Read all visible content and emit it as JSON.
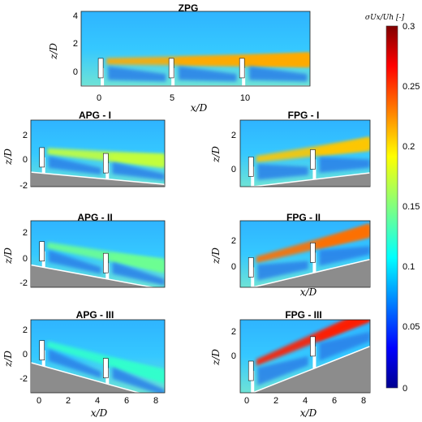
{
  "chart_data": [
    {
      "type": "heatmap",
      "title": "ZPG",
      "xlabel": "x/D",
      "ylabel": "z/D",
      "xlim": [
        -1.5,
        14.7
      ],
      "ylim": [
        -1,
        4
      ],
      "xticks": [
        "0",
        "5",
        "10"
      ],
      "yticks": [
        "4",
        "2",
        "0"
      ],
      "turbines_x": [
        0,
        5,
        10
      ],
      "terrain_slope_deg": 0,
      "wake_max": 0.25
    },
    {
      "type": "heatmap",
      "title": "APG - I",
      "xlabel": "",
      "ylabel": "z/D",
      "xlim": [
        -1,
        9.5
      ],
      "ylim": [
        -2,
        3
      ],
      "xticks": [],
      "yticks": [
        "2",
        "0",
        "-2"
      ],
      "turbines_x": [
        0,
        5
      ],
      "terrain_slope_deg": -5,
      "wake_max": 0.2
    },
    {
      "type": "heatmap",
      "title": "FPG - I",
      "xlabel": "",
      "ylabel": "z/D",
      "xlim": [
        -1,
        9.5
      ],
      "ylim": [
        -1,
        3
      ],
      "xticks": [],
      "yticks": [
        "2",
        "0"
      ],
      "turbines_x": [
        0,
        5
      ],
      "terrain_slope_deg": 5,
      "wake_max": 0.24
    },
    {
      "type": "heatmap",
      "title": "APG - II",
      "xlabel": "",
      "ylabel": "z/D",
      "xlim": [
        -1,
        9.5
      ],
      "ylim": [
        -2.5,
        2.5
      ],
      "xticks": [],
      "yticks": [
        "2",
        "0",
        "-2"
      ],
      "turbines_x": [
        0,
        5
      ],
      "terrain_slope_deg": -10,
      "wake_max": 0.17
    },
    {
      "type": "heatmap",
      "title": "FPG - II",
      "xlabel": "x/D",
      "ylabel": "z/D",
      "xlim": [
        -1,
        9.5
      ],
      "ylim": [
        -1,
        3
      ],
      "xticks": [],
      "yticks": [
        "2",
        "0"
      ],
      "turbines_x": [
        0,
        5
      ],
      "terrain_slope_deg": 10,
      "wake_max": 0.27
    },
    {
      "type": "heatmap",
      "title": "APG - III",
      "xlabel": "x/D",
      "ylabel": "z/D",
      "xlim": [
        -1,
        9.5
      ],
      "ylim": [
        -3,
        2.5
      ],
      "xticks": [
        "0",
        "2",
        "4",
        "6",
        "8"
      ],
      "yticks": [
        "2",
        "0",
        "-2"
      ],
      "turbines_x": [
        0,
        5
      ],
      "terrain_slope_deg": -15,
      "wake_max": 0.15
    },
    {
      "type": "heatmap",
      "title": "FPG - III",
      "xlabel": "x/D",
      "ylabel": "z/D",
      "xlim": [
        -1,
        9.5
      ],
      "ylim": [
        -1,
        3
      ],
      "xticks": [
        "0",
        "2",
        "4",
        "6",
        "8"
      ],
      "yticks": [
        "2",
        "0"
      ],
      "turbines_x": [
        0,
        5
      ],
      "terrain_slope_deg": 15,
      "wake_max": 0.3
    }
  ],
  "colorbar": {
    "label": "σUx/Uh [-]",
    "min": 0,
    "max": 0.3,
    "ticks": [
      "0.3",
      "0.25",
      "0.2",
      "0.15",
      "0.1",
      "0.05",
      "0"
    ],
    "colormap": "jet"
  }
}
